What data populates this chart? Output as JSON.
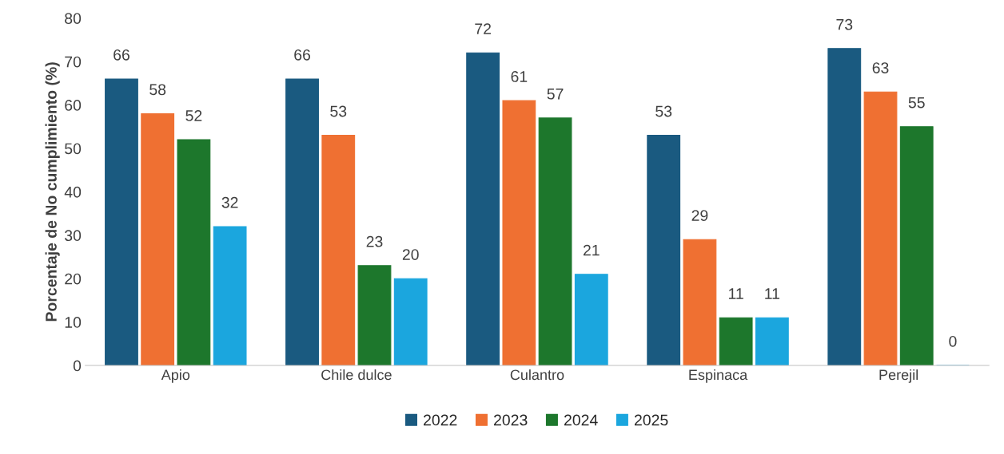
{
  "chart_data": {
    "type": "bar",
    "ylabel": "Porcentaje de No cumplimiento (%)",
    "categories": [
      "Apio",
      "Chile dulce",
      "Culantro",
      "Espinaca",
      "Perejil"
    ],
    "series": [
      {
        "name": "2022",
        "color": "#1a5a80",
        "values": [
          66,
          66,
          72,
          53,
          73
        ]
      },
      {
        "name": "2023",
        "color": "#ef7032",
        "values": [
          58,
          53,
          61,
          29,
          63
        ]
      },
      {
        "name": "2024",
        "color": "#1d772c",
        "values": [
          52,
          23,
          57,
          11,
          55
        ]
      },
      {
        "name": "2025",
        "color": "#1ba6de",
        "values": [
          32,
          20,
          21,
          11,
          0
        ]
      }
    ],
    "ylim": [
      0,
      80
    ],
    "yticks": [
      0,
      10,
      20,
      30,
      40,
      50,
      60,
      70,
      80
    ],
    "data_labels": true,
    "legend": "bottom",
    "grid": false
  }
}
